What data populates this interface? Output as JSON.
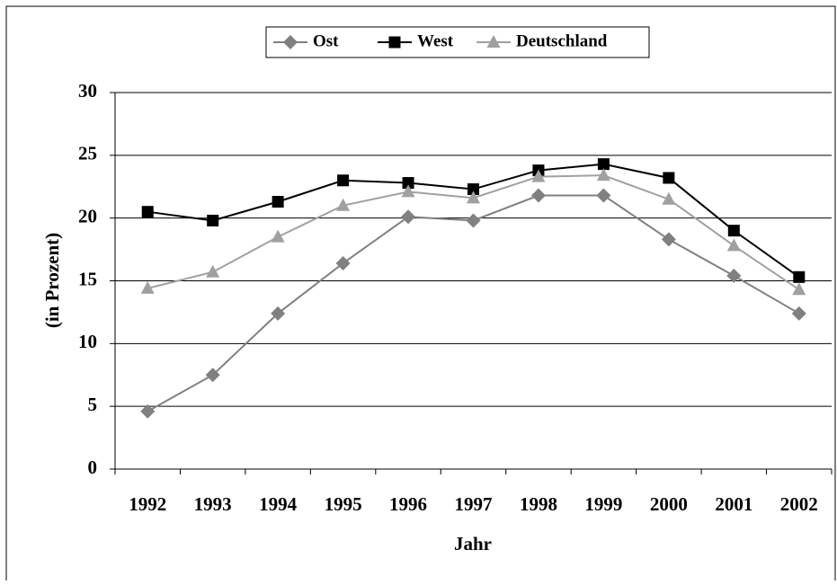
{
  "chart_data": {
    "type": "line",
    "categories": [
      "1992",
      "1993",
      "1994",
      "1995",
      "1996",
      "1997",
      "1998",
      "1999",
      "2000",
      "2001",
      "2002"
    ],
    "x_label": "Jahr",
    "y_label": "(in Prozent)",
    "series": [
      {
        "name": "Ost",
        "color": "#808080",
        "marker": "diamond",
        "values": [
          4.6,
          7.5,
          12.4,
          16.4,
          20.1,
          19.8,
          21.8,
          21.8,
          18.3,
          15.4,
          12.4
        ]
      },
      {
        "name": "West",
        "color": "#000000",
        "marker": "square",
        "values": [
          20.5,
          19.8,
          21.3,
          23.0,
          22.8,
          22.3,
          23.8,
          24.3,
          23.2,
          19.0,
          15.3
        ]
      },
      {
        "name": "Deutschland",
        "color": "#a0a0a0",
        "marker": "triangle",
        "values": [
          14.4,
          15.7,
          18.5,
          21.0,
          22.1,
          21.6,
          23.3,
          23.4,
          21.5,
          17.8,
          14.3
        ]
      }
    ],
    "ylim": [
      0,
      30
    ],
    "yticks": [
      0,
      5,
      10,
      15,
      20,
      25,
      30
    ],
    "grid": true
  }
}
